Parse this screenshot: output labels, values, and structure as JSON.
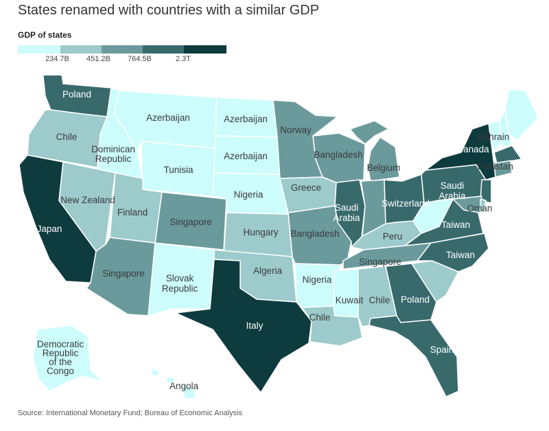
{
  "title": "States renamed with countries with a similar GDP",
  "legend": {
    "title": "GDP of states",
    "colors": [
      "#ccfcfc",
      "#9dcaca",
      "#6b9a9c",
      "#386a6c",
      "#0e3b3d"
    ],
    "labels": [
      "234.7B",
      "451.2B",
      "764.5B",
      "2.3T"
    ]
  },
  "regions": [
    {
      "state": "Washington",
      "country": "Poland",
      "level": 3
    },
    {
      "state": "Oregon",
      "country": "Chile",
      "level": 1
    },
    {
      "state": "Idaho",
      "country": "Dominican Republic",
      "level": 0
    },
    {
      "state": "Montana",
      "country": "Azerbaijan",
      "level": 0
    },
    {
      "state": "Wyoming",
      "country": "Tunisia",
      "level": 0
    },
    {
      "state": "North Dakota",
      "country": "Azerbaijan",
      "level": 0
    },
    {
      "state": "South Dakota",
      "country": "Azerbaijan",
      "level": 0
    },
    {
      "state": "Nebraska",
      "country": "Nigeria",
      "level": 0
    },
    {
      "state": "California",
      "country": "Japan",
      "level": 4
    },
    {
      "state": "Nevada",
      "country": "New Zealand",
      "level": 1
    },
    {
      "state": "Utah",
      "country": "Finland",
      "level": 1
    },
    {
      "state": "Colorado",
      "country": "Singapore",
      "level": 2
    },
    {
      "state": "Arizona",
      "country": "Singapore",
      "level": 2
    },
    {
      "state": "New Mexico",
      "country": "Slovak Republic",
      "level": 0
    },
    {
      "state": "Kansas",
      "country": "Hungary",
      "level": 1
    },
    {
      "state": "Oklahoma",
      "country": "Algeria",
      "level": 1
    },
    {
      "state": "Texas",
      "country": "Italy",
      "level": 4
    },
    {
      "state": "Minnesota",
      "country": "Norway",
      "level": 2
    },
    {
      "state": "Iowa",
      "country": "Greece",
      "level": 1
    },
    {
      "state": "Missouri",
      "country": "Bangladesh",
      "level": 2
    },
    {
      "state": "Arkansas",
      "country": "Nigeria",
      "level": 0
    },
    {
      "state": "Louisiana",
      "country": "Chile",
      "level": 1
    },
    {
      "state": "Wisconsin",
      "country": "Bangladesh",
      "level": 2
    },
    {
      "state": "Illinois",
      "country": "Saudi Arabia",
      "level": 3
    },
    {
      "state": "Michigan",
      "country": "Belgium",
      "level": 2
    },
    {
      "state": "Indiana",
      "country": "",
      "level": 2
    },
    {
      "state": "Ohio",
      "country": "Switzerland",
      "level": 3
    },
    {
      "state": "Kentucky",
      "country": "Peru",
      "level": 1
    },
    {
      "state": "Tennessee",
      "country": "Singapore",
      "level": 2
    },
    {
      "state": "Mississippi",
      "country": "Kuwait",
      "level": 0
    },
    {
      "state": "Alabama",
      "country": "Chile",
      "level": 1
    },
    {
      "state": "Georgia",
      "country": "Poland",
      "level": 3
    },
    {
      "state": "Florida",
      "country": "Spain",
      "level": 3
    },
    {
      "state": "South Carolina",
      "country": "",
      "level": 1
    },
    {
      "state": "North Carolina",
      "country": "Taiwan",
      "level": 3
    },
    {
      "state": "Virginia",
      "country": "Taiwan",
      "level": 3
    },
    {
      "state": "West Virginia",
      "country": "",
      "level": 0
    },
    {
      "state": "Pennsylvania",
      "country": "Saudi Arabia",
      "level": 3
    },
    {
      "state": "New York",
      "country": "Canada",
      "level": 4
    },
    {
      "state": "Vermont",
      "country": "Bahrain",
      "level": 0
    },
    {
      "state": "Maine",
      "country": "",
      "level": 0
    },
    {
      "state": "New Hampshire",
      "country": "",
      "level": 0
    },
    {
      "state": "Massachusetts",
      "country": "",
      "level": 3
    },
    {
      "state": "Connecticut",
      "country": "Pakistan",
      "level": 2
    },
    {
      "state": "New Jersey",
      "country": "",
      "level": 3
    },
    {
      "state": "Maryland",
      "country": "Oman",
      "level": 2
    },
    {
      "state": "Delaware",
      "country": "",
      "level": 1
    },
    {
      "state": "Alaska",
      "country": "Democratic Republic of the Congo",
      "level": 0
    },
    {
      "state": "Hawaii",
      "country": "Angola",
      "level": 0
    }
  ],
  "source": "Source: International Monetary Fund; Bureau of Economic Analysis"
}
